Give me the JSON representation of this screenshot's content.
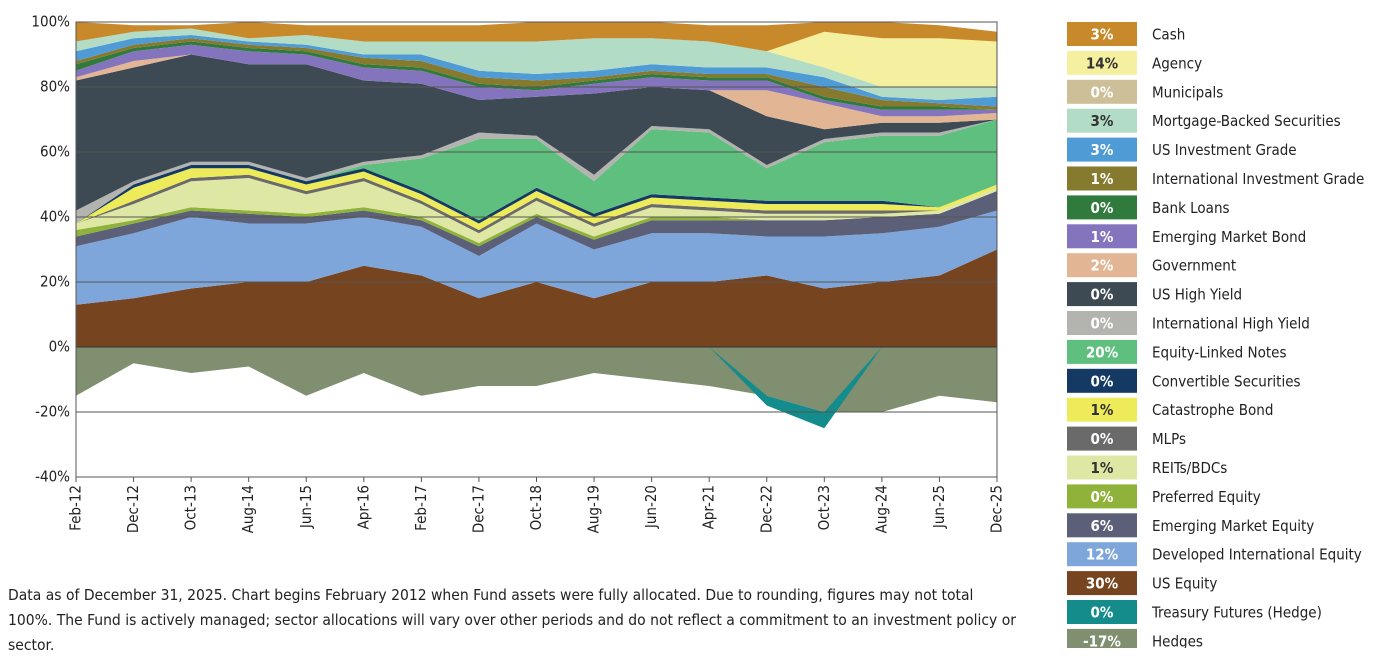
{
  "chart_data": {
    "type": "stacked-area",
    "categories": [
      "Feb-12",
      "Dec-12",
      "Oct-13",
      "Aug-14",
      "Jun-15",
      "Apr-16",
      "Feb-17",
      "Dec-17",
      "Oct-18",
      "Aug-19",
      "Jun-20",
      "Apr-21",
      "Dec-22",
      "Oct-23",
      "Aug-24",
      "Jun-25",
      "Dec-25"
    ],
    "ylim": [
      -40,
      100
    ],
    "yticks": [
      {
        "value": 100,
        "label": "100%"
      },
      {
        "value": 80,
        "label": "80%"
      },
      {
        "value": 60,
        "label": "60%"
      },
      {
        "value": 40,
        "label": "40%"
      },
      {
        "value": 20,
        "label": "20%"
      },
      {
        "value": 0,
        "label": "0%"
      },
      {
        "value": -20,
        "label": "-20%"
      },
      {
        "value": -40,
        "label": "-40%"
      }
    ],
    "grid": true,
    "legend": "right",
    "note": "Data as of December 31, 2025. Chart begins February 2012 when Fund assets were fully allocated. Due to rounding, figures may not total 100%. The Fund is actively managed; sector allocations will vary over other periods and do not reflect a commitment to an investment policy or sector.",
    "series": [
      {
        "name": "Cash",
        "legend_value": "3%",
        "color": "#c8892b",
        "values": [
          6,
          2,
          1,
          5,
          3,
          5,
          5,
          5,
          6,
          5,
          5,
          5,
          8,
          3,
          5,
          4,
          3
        ]
      },
      {
        "name": "Agency",
        "legend_value": "14%",
        "color": "#f4f0a0",
        "values": [
          0,
          0,
          0,
          0,
          0,
          0,
          0,
          0,
          0,
          0,
          0,
          0,
          0,
          11,
          15,
          15,
          14
        ]
      },
      {
        "name": "Municipals",
        "legend_value": "0%",
        "color": "#cdbf98",
        "values": [
          0,
          0,
          0,
          0,
          0,
          0,
          0,
          0,
          0,
          0,
          0,
          0,
          0,
          0,
          0,
          0,
          0
        ]
      },
      {
        "name": "Mortgage-Backed Securities",
        "legend_value": "3%",
        "color": "#b2dcc6",
        "values": [
          3,
          2,
          2,
          1,
          3,
          4,
          4,
          9,
          10,
          10,
          8,
          8,
          5,
          3,
          3,
          4,
          3
        ]
      },
      {
        "name": "US Investment Grade",
        "legend_value": "3%",
        "color": "#4f9bd6",
        "values": [
          3,
          2,
          1,
          1,
          1,
          1,
          2,
          2,
          2,
          2,
          2,
          2,
          2,
          3,
          1,
          1,
          3
        ]
      },
      {
        "name": "International Investment Grade",
        "legend_value": "1%",
        "color": "#857a2e",
        "values": [
          1,
          1,
          1,
          1,
          1,
          2,
          2,
          2,
          2,
          1,
          1,
          1,
          1,
          3,
          2,
          1,
          1
        ]
      },
      {
        "name": "Bank Loans",
        "legend_value": "0%",
        "color": "#2f7a3c",
        "values": [
          2,
          1,
          1,
          1,
          1,
          1,
          1,
          1,
          1,
          1,
          1,
          1,
          1,
          1,
          1,
          1,
          0
        ]
      },
      {
        "name": "Emerging Market Bond",
        "legend_value": "1%",
        "color": "#8474bd",
        "values": [
          2,
          3,
          3,
          4,
          3,
          4,
          4,
          4,
          2,
          3,
          3,
          3,
          3,
          1,
          2,
          2,
          1
        ]
      },
      {
        "name": "Government",
        "legend_value": "2%",
        "color": "#e2b695",
        "values": [
          1,
          2,
          0,
          0,
          0,
          0,
          0,
          0,
          0,
          0,
          0,
          0,
          8,
          8,
          2,
          2,
          2
        ]
      },
      {
        "name": "US High Yield",
        "legend_value": "0%",
        "color": "#3d4a54",
        "values": [
          40,
          35,
          33,
          30,
          35,
          25,
          22,
          10,
          12,
          25,
          12,
          12,
          15,
          3,
          3,
          3,
          0
        ]
      },
      {
        "name": "International High Yield",
        "legend_value": "0%",
        "color": "#b3b3b0",
        "values": [
          4,
          1,
          1,
          1,
          1,
          1,
          1,
          2,
          1,
          2,
          1,
          1,
          1,
          1,
          1,
          1,
          0
        ]
      },
      {
        "name": "Equity-Linked Notes",
        "legend_value": "20%",
        "color": "#5fbf7e",
        "values": [
          0,
          0,
          0,
          0,
          0,
          1,
          10,
          25,
          15,
          10,
          20,
          20,
          10,
          18,
          20,
          22,
          20
        ]
      },
      {
        "name": "Convertible Securities",
        "legend_value": "0%",
        "color": "#143a63",
        "values": [
          0,
          1,
          1,
          1,
          1,
          1,
          1,
          1,
          1,
          1,
          1,
          1,
          1,
          1,
          1,
          0,
          0
        ]
      },
      {
        "name": "Catastrophe Bond",
        "legend_value": "1%",
        "color": "#eeeb5a",
        "values": [
          0,
          4,
          3,
          2,
          2,
          2,
          2,
          2,
          2,
          2,
          2,
          2,
          2,
          2,
          2,
          1,
          1
        ]
      },
      {
        "name": "MLPs",
        "legend_value": "0%",
        "color": "#6a6a6a",
        "values": [
          0,
          1,
          1,
          1,
          1,
          1,
          1,
          1,
          1,
          1,
          1,
          1,
          1,
          1,
          1,
          0,
          0
        ]
      },
      {
        "name": "REITs/BDCs",
        "legend_value": "1%",
        "color": "#dfe7a4",
        "values": [
          2,
          5,
          8,
          10,
          6,
          8,
          4,
          3,
          4,
          3,
          3,
          2,
          2,
          2,
          1,
          1,
          1
        ]
      },
      {
        "name": "Preferred Equity",
        "legend_value": "0%",
        "color": "#8fb23a",
        "values": [
          2,
          1,
          1,
          1,
          1,
          1,
          1,
          1,
          1,
          1,
          1,
          1,
          0,
          0,
          0,
          0,
          0
        ]
      },
      {
        "name": "Emerging Market Equity",
        "legend_value": "6%",
        "color": "#5b5f78",
        "values": [
          3,
          3,
          2,
          3,
          2,
          2,
          2,
          3,
          2,
          3,
          4,
          4,
          5,
          5,
          5,
          4,
          6
        ]
      },
      {
        "name": "Developed International Equity",
        "legend_value": "12%",
        "color": "#7ea6da",
        "values": [
          18,
          20,
          22,
          18,
          18,
          15,
          15,
          13,
          18,
          15,
          15,
          15,
          12,
          16,
          15,
          15,
          12
        ]
      },
      {
        "name": "US Equity",
        "legend_value": "30%",
        "color": "#774420",
        "values": [
          13,
          15,
          18,
          20,
          20,
          25,
          22,
          15,
          20,
          15,
          20,
          20,
          22,
          18,
          20,
          22,
          30
        ]
      },
      {
        "name": "Treasury Futures (Hedge)",
        "legend_value": "0%",
        "color": "#148c8c",
        "values": [
          0,
          0,
          0,
          0,
          0,
          0,
          0,
          0,
          0,
          0,
          0,
          0,
          -3,
          -5,
          0,
          0,
          0
        ]
      },
      {
        "name": "Hedges",
        "legend_value": "-17%",
        "color": "#7f8f70",
        "values": [
          -15,
          -5,
          -8,
          -6,
          -15,
          -8,
          -15,
          -12,
          -12,
          -8,
          -10,
          -12,
          -15,
          -20,
          -20,
          -15,
          -17
        ]
      }
    ]
  }
}
